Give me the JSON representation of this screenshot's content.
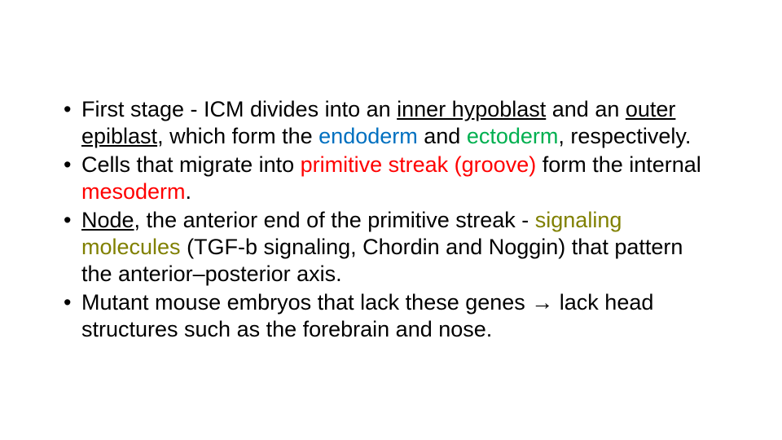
{
  "colors": {
    "text": "#000000",
    "blue": "#0070c0",
    "green": "#00b050",
    "red": "#ff0000",
    "olive": "#808000",
    "background": "#ffffff"
  },
  "typography": {
    "body_fontsize_pt": 20,
    "line_height": 1.22,
    "font_family": "Arial"
  },
  "bullets": [
    {
      "runs": [
        {
          "t": "First stage -  ICM divides into an ",
          "cls": "black"
        },
        {
          "t": "inner hypoblast",
          "cls": "black u"
        },
        {
          "t": " and an ",
          "cls": "black"
        },
        {
          "t": "outer epiblast",
          "cls": "black u"
        },
        {
          "t": ", which form the ",
          "cls": "black"
        },
        {
          "t": "endoderm",
          "cls": "blue"
        },
        {
          "t": " and ",
          "cls": "black"
        },
        {
          "t": "ectoderm",
          "cls": "green"
        },
        {
          "t": ", respectively.",
          "cls": "black"
        }
      ]
    },
    {
      "runs": [
        {
          "t": "Cells that migrate into ",
          "cls": "black"
        },
        {
          "t": "primitive streak (groove)",
          "cls": "red"
        },
        {
          "t": " form the internal ",
          "cls": "black"
        },
        {
          "t": "mesoderm",
          "cls": "red"
        },
        {
          "t": ".",
          "cls": "black"
        }
      ]
    },
    {
      "runs": [
        {
          "t": "Node",
          "cls": "black u"
        },
        {
          "t": ", the anterior end of the primitive streak - ",
          "cls": "black"
        },
        {
          "t": "signaling molecules ",
          "cls": "olive"
        },
        {
          "t": "(TGF-b signaling, Chordin and Noggin) that pattern the anterior–posterior axis.",
          "cls": "black"
        }
      ]
    },
    {
      "runs": [
        {
          "t": "Mutant mouse embryos that lack these genes → lack head structures such as the forebrain and nose.",
          "cls": "black"
        }
      ]
    }
  ]
}
